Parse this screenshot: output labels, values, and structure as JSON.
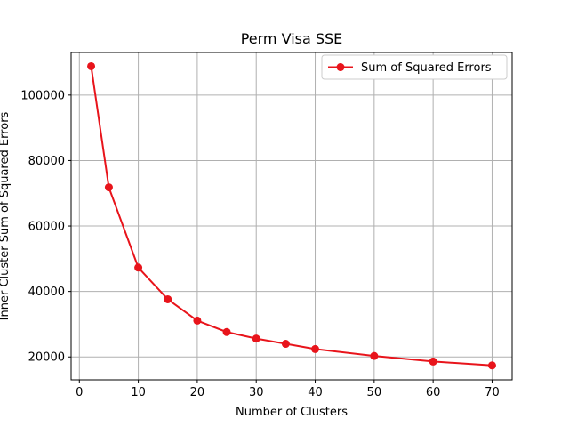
{
  "chart_data": {
    "type": "line",
    "title": "Perm Visa SSE",
    "xlabel": "Number of Clusters",
    "ylabel": "Inner Cluster Sum of Squared Errors",
    "xlim": [
      -1.4,
      73.4
    ],
    "ylim": [
      13000,
      113000
    ],
    "xticks": [
      0,
      10,
      20,
      30,
      40,
      50,
      60,
      70
    ],
    "yticks": [
      20000,
      40000,
      60000,
      80000,
      100000
    ],
    "grid": true,
    "legend_position": "top-right",
    "series": [
      {
        "name": "Sum of Squared Errors",
        "color": "#e8141b",
        "marker": "circle",
        "x": [
          2,
          5,
          10,
          15,
          20,
          25,
          30,
          35,
          40,
          50,
          60,
          70
        ],
        "y": [
          108800,
          71800,
          47300,
          37600,
          31100,
          27600,
          25600,
          24000,
          22400,
          20300,
          18600,
          17400
        ]
      }
    ]
  }
}
